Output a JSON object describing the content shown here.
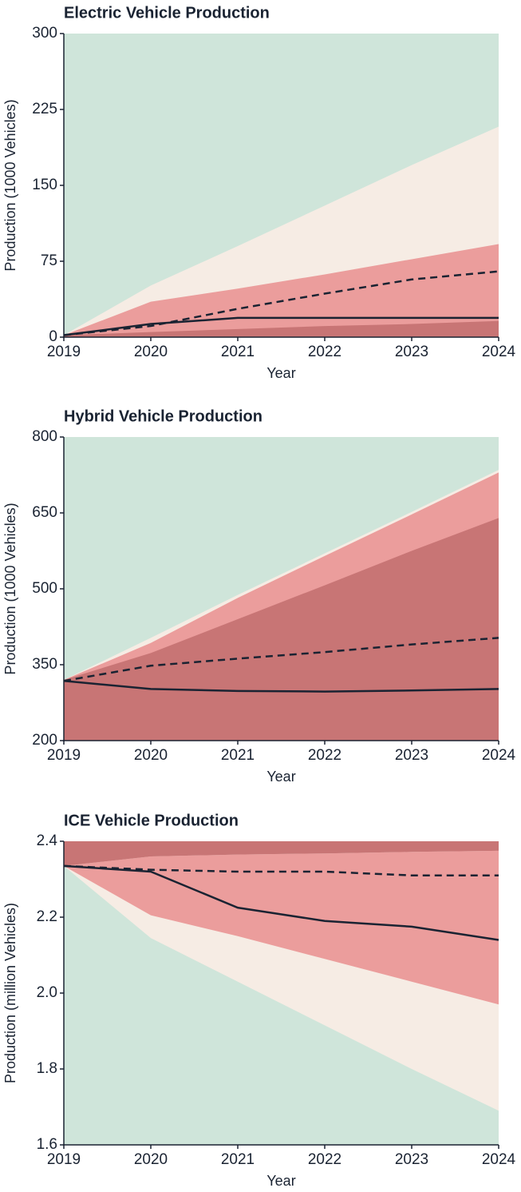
{
  "chart_data": [
    {
      "type": "fan",
      "title": "Electric Vehicle Production",
      "xlabel": "Year",
      "ylabel": "Production (1000 Vehicles)",
      "x": [
        2019,
        2020,
        2021,
        2022,
        2023,
        2024
      ],
      "xlim": [
        2019,
        2024
      ],
      "xticks": [
        2019,
        2020,
        2021,
        2022,
        2023,
        2024
      ],
      "ylim": [
        0,
        300
      ],
      "yticks": [
        0,
        75,
        150,
        225,
        300
      ],
      "background": "#cfe5da",
      "bands": [
        {
          "color": "#f6ece4",
          "lower": [
            0,
            0,
            0,
            0,
            0,
            0
          ],
          "upper": [
            2,
            51,
            90,
            130,
            170,
            208
          ]
        },
        {
          "color": "#eb9d9c",
          "lower": [
            0,
            0,
            0,
            0,
            0,
            0
          ],
          "upper": [
            2,
            35,
            48,
            62,
            77,
            92
          ]
        },
        {
          "color": "#c87575",
          "lower": [
            0,
            0,
            0,
            0,
            0,
            0
          ],
          "upper": [
            2,
            5,
            8,
            11,
            13,
            16
          ]
        }
      ],
      "lines": [
        {
          "color": "#1a2332",
          "style": "solid",
          "values": [
            2,
            13,
            19,
            19,
            19,
            19
          ]
        },
        {
          "color": "#1a2332",
          "style": "dashed",
          "values": [
            2,
            11,
            28,
            43,
            57,
            65
          ]
        }
      ]
    },
    {
      "type": "fan",
      "title": "Hybrid Vehicle Production",
      "xlabel": "Year",
      "ylabel": "Production (1000 Vehicles)",
      "x": [
        2019,
        2020,
        2021,
        2022,
        2023,
        2024
      ],
      "xlim": [
        2019,
        2024
      ],
      "xticks": [
        2019,
        2020,
        2021,
        2022,
        2023,
        2024
      ],
      "ylim": [
        200,
        800
      ],
      "yticks": [
        200,
        350,
        500,
        650,
        800
      ],
      "background": "#cfe5da",
      "bands": [
        {
          "color": "#f6ece4",
          "lower": [
            200,
            200,
            200,
            200,
            200,
            200
          ],
          "upper": [
            320,
            403,
            488,
            570,
            652,
            735
          ]
        },
        {
          "color": "#eb9d9c",
          "lower": [
            200,
            200,
            200,
            200,
            200,
            200
          ],
          "upper": [
            320,
            393,
            482,
            565,
            647,
            730
          ]
        },
        {
          "color": "#c87575",
          "lower": [
            200,
            200,
            200,
            200,
            200,
            200
          ],
          "upper": [
            320,
            373,
            440,
            507,
            575,
            640
          ]
        }
      ],
      "lines": [
        {
          "color": "#1a2332",
          "style": "solid",
          "values": [
            318,
            302,
            298,
            297,
            299,
            302
          ]
        },
        {
          "color": "#1a2332",
          "style": "dashed",
          "values": [
            318,
            348,
            362,
            375,
            390,
            403
          ]
        }
      ]
    },
    {
      "type": "fan",
      "title": "ICE Vehicle Production",
      "xlabel": "Year",
      "ylabel": "Production (million Vehicles)",
      "x": [
        2019,
        2020,
        2021,
        2022,
        2023,
        2024
      ],
      "xlim": [
        2019,
        2024
      ],
      "xticks": [
        2019,
        2020,
        2021,
        2022,
        2023,
        2024
      ],
      "ylim": [
        1.6,
        2.4
      ],
      "yticks": [
        1.6,
        1.8,
        {
          "value": 2,
          "label": "2.0"
        },
        2.2,
        2.4
      ],
      "background": "#cfe5da",
      "bands": [
        {
          "color": "#f6ece4",
          "lower": [
            2.335,
            2.145,
            2.03,
            1.915,
            1.8,
            1.69
          ],
          "upper": [
            2.4,
            2.4,
            2.4,
            2.4,
            2.4,
            2.4
          ]
        },
        {
          "color": "#eb9d9c",
          "lower": [
            2.335,
            2.205,
            2.15,
            2.09,
            2.03,
            1.97
          ],
          "upper": [
            2.335,
            2.36,
            2.365,
            2.368,
            2.372,
            2.375
          ]
        },
        {
          "color": "#c87575",
          "lower": [
            2.335,
            2.36,
            2.365,
            2.368,
            2.372,
            2.375
          ],
          "upper": [
            2.4,
            2.4,
            2.4,
            2.4,
            2.4,
            2.4
          ]
        }
      ],
      "lines": [
        {
          "color": "#1a2332",
          "style": "solid",
          "values": [
            2.335,
            2.32,
            2.225,
            2.19,
            2.175,
            2.14
          ]
        },
        {
          "color": "#1a2332",
          "style": "dashed",
          "values": [
            2.335,
            2.325,
            2.32,
            2.32,
            2.31,
            2.31
          ]
        }
      ]
    }
  ]
}
